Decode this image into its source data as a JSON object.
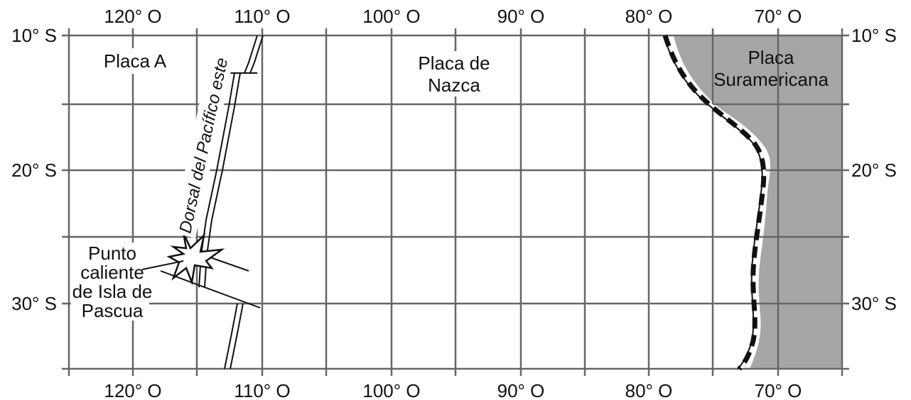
{
  "map": {
    "longitude_labels": [
      "120° O",
      "110° O",
      "100° O",
      "90° O",
      "80° O",
      "70° O"
    ],
    "latitude_labels": [
      "10° S",
      "20° S",
      "30° S"
    ],
    "plates": {
      "plate_a": "Placa A",
      "nazca_line1": "Placa de",
      "nazca_line2": "Nazca",
      "south_american_line1": "Placa",
      "south_american_line2": "Suramericana"
    },
    "ridge_label": "Dorsal del Pacífico este",
    "hotspot_label": [
      "Punto",
      "caliente",
      "de Isla de",
      "Pascua"
    ],
    "colors": {
      "continent": "#a6a6a6",
      "grid": "#666666",
      "ink": "#111111"
    },
    "icons": {
      "hotspot": "star-burst-icon"
    }
  }
}
